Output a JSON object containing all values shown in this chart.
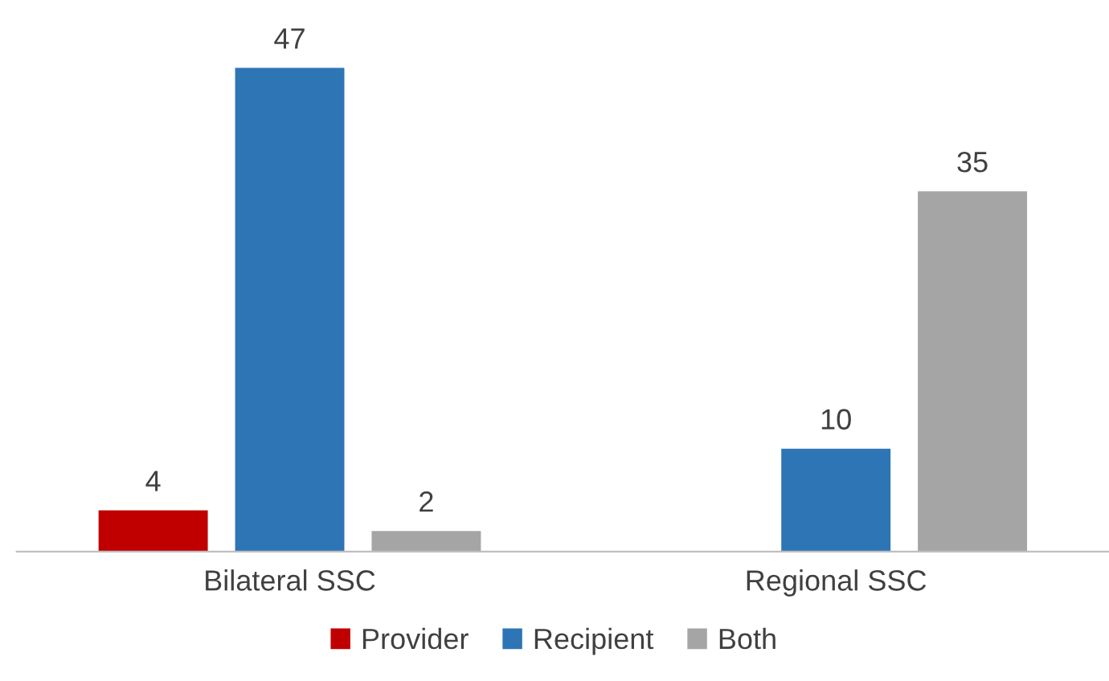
{
  "chart_data": {
    "type": "bar",
    "categories": [
      "Bilateral SSC",
      "Regional SSC"
    ],
    "series": [
      {
        "name": "Provider",
        "color": "#c00000",
        "values": [
          4,
          null
        ]
      },
      {
        "name": "Recipient",
        "color": "#2e75b6",
        "values": [
          47,
          10
        ]
      },
      {
        "name": "Both",
        "color": "#a5a5a5",
        "values": [
          2,
          35
        ]
      }
    ],
    "data_labels": true,
    "legend": "bottom",
    "grid": false
  }
}
